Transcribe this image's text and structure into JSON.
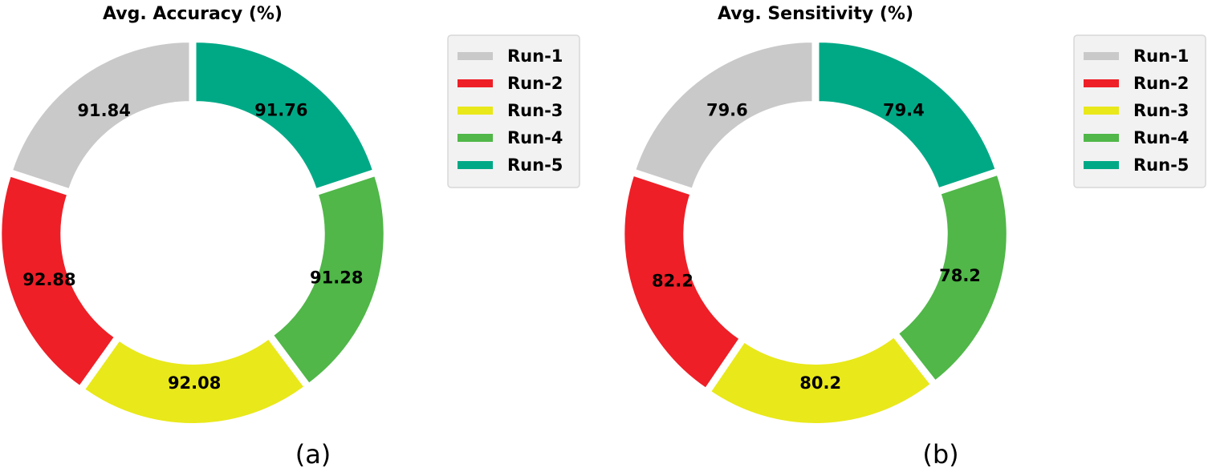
{
  "chart_data": [
    {
      "type": "pie",
      "title": "Avg. Accuracy (%)",
      "caption": "(a)",
      "categories": [
        "Run-1",
        "Run-2",
        "Run-3",
        "Run-4",
        "Run-5"
      ],
      "values": [
        91.84,
        92.88,
        92.08,
        91.28,
        91.76
      ],
      "labels": [
        "91.84",
        "92.88",
        "92.08",
        "91.28",
        "91.76"
      ],
      "colors": [
        "#c9c9c9",
        "#ee1f27",
        "#e9e81a",
        "#50b748",
        "#00a986"
      ],
      "style": "donut",
      "legend": "right"
    },
    {
      "type": "pie",
      "title": "Avg. Sensitivity (%)",
      "caption": "(b)",
      "categories": [
        "Run-1",
        "Run-2",
        "Run-3",
        "Run-4",
        "Run-5"
      ],
      "values": [
        79.6,
        82.2,
        80.2,
        78.2,
        79.4
      ],
      "labels": [
        "79.6",
        "82.2",
        "80.2",
        "78.2",
        "79.4"
      ],
      "colors": [
        "#c9c9c9",
        "#ee1f27",
        "#e9e81a",
        "#50b748",
        "#00a986"
      ],
      "style": "donut",
      "legend": "right"
    }
  ]
}
